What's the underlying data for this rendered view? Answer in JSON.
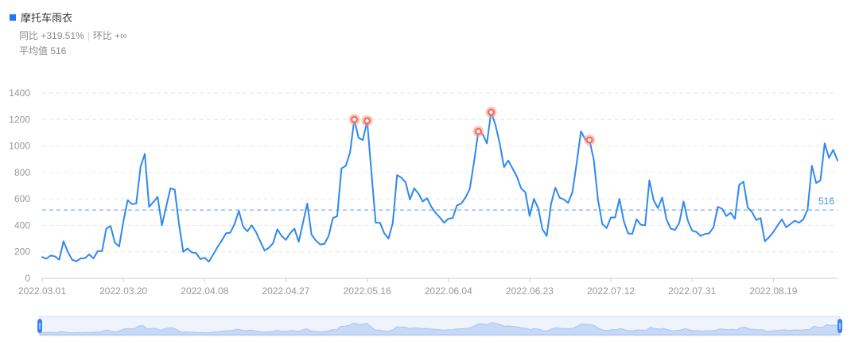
{
  "legend": {
    "label": "摩托车雨衣",
    "color": "#1a7cf5"
  },
  "stats": {
    "yoy": "同比 +319.51%",
    "mom": "环比 +∞",
    "avg": "平均值 516"
  },
  "chart_data": {
    "type": "line",
    "series": [
      {
        "name": "摩托车雨衣",
        "color": "#2f88f2",
        "values": [
          160,
          148,
          172,
          165,
          140,
          280,
          200,
          140,
          128,
          150,
          152,
          180,
          150,
          205,
          205,
          375,
          395,
          270,
          240,
          430,
          590,
          560,
          565,
          840,
          940,
          540,
          575,
          615,
          400,
          540,
          680,
          670,
          410,
          200,
          225,
          195,
          190,
          145,
          155,
          125,
          180,
          235,
          285,
          340,
          345,
          410,
          510,
          390,
          355,
          400,
          350,
          280,
          210,
          230,
          265,
          370,
          320,
          290,
          340,
          375,
          275,
          420,
          565,
          330,
          285,
          255,
          260,
          320,
          455,
          470,
          830,
          850,
          950,
          1200,
          1060,
          1045,
          1190,
          800,
          420,
          420,
          340,
          300,
          420,
          780,
          760,
          725,
          595,
          680,
          640,
          580,
          605,
          540,
          495,
          460,
          420,
          450,
          455,
          550,
          565,
          610,
          675,
          880,
          1110,
          1090,
          1020,
          1255,
          1160,
          1020,
          840,
          890,
          830,
          770,
          680,
          650,
          470,
          600,
          530,
          370,
          320,
          560,
          685,
          610,
          595,
          570,
          650,
          870,
          1110,
          1050,
          1045,
          895,
          590,
          410,
          380,
          460,
          460,
          600,
          435,
          340,
          335,
          445,
          405,
          400,
          740,
          590,
          530,
          610,
          445,
          375,
          365,
          420,
          580,
          435,
          360,
          350,
          320,
          335,
          340,
          385,
          540,
          525,
          470,
          495,
          450,
          705,
          730,
          535,
          500,
          440,
          455,
          280,
          310,
          350,
          400,
          445,
          385,
          410,
          435,
          420,
          445,
          520,
          850,
          720,
          740,
          1020,
          910,
          970,
          890
        ],
        "peaks": [
          73,
          76,
          102,
          105,
          128
        ]
      }
    ],
    "x_start": "2022.03.01",
    "x_end": "2022.09.02",
    "tick_labels": [
      "2022.03.01",
      "2022.03.20",
      "2022.04.08",
      "2022.04.27",
      "2022.05.16",
      "2022.06.04",
      "2022.06.23",
      "2022.07.12",
      "2022.07.31",
      "2022.08.19"
    ],
    "y_ticks": [
      0,
      200,
      400,
      600,
      800,
      1000,
      1200,
      1400
    ],
    "ylim": [
      0,
      1400
    ],
    "average": 516,
    "average_label": "516",
    "grid": true
  }
}
